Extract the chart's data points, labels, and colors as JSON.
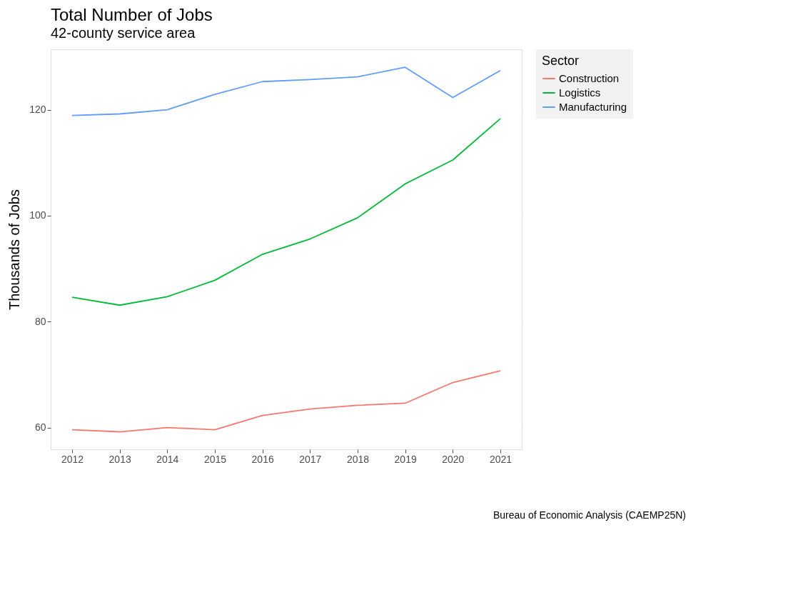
{
  "chart_data": {
    "type": "line",
    "title": "Total Number of Jobs",
    "subtitle": "42-county service area",
    "ylabel": "Thousands of Jobs",
    "legend_title": "Sector",
    "annotations": [
      "Bureau of Economic Analysis (CAEMP25N)"
    ],
    "x": [
      2012,
      2013,
      2014,
      2015,
      2016,
      2017,
      2018,
      2019,
      2020,
      2021
    ],
    "series": [
      {
        "name": "Construction",
        "color": "#f8766d",
        "values": [
          59.6,
          59.2,
          60.0,
          59.6,
          62.3,
          63.5,
          64.2,
          64.6,
          68.5,
          70.7
        ]
      },
      {
        "name": "Logistics",
        "color": "#00ba38",
        "values": [
          84.6,
          83.1,
          84.7,
          87.8,
          92.7,
          95.6,
          99.6,
          106.0,
          110.5,
          118.3
        ]
      },
      {
        "name": "Manufacturing",
        "color": "#619cff",
        "values": [
          118.9,
          119.2,
          120.0,
          122.9,
          125.3,
          125.7,
          126.2,
          128.0,
          122.3,
          127.4
        ]
      }
    ],
    "xlim": [
      2011.55,
      2021.45
    ],
    "xticks": [
      2012,
      2013,
      2014,
      2015,
      2016,
      2017,
      2018,
      2019,
      2020,
      2021
    ],
    "ylim": [
      55.9,
      131.4
    ],
    "yticks": [
      60,
      80,
      100,
      120
    ],
    "grid": true,
    "legend": "right",
    "marker": "none",
    "line_style": "solid"
  }
}
